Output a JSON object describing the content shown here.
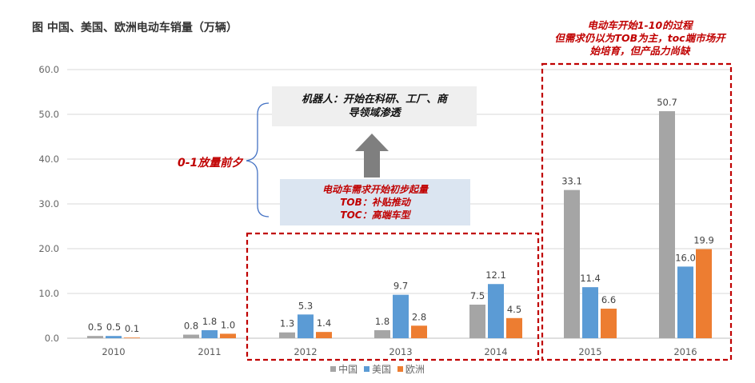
{
  "title": "图 中国、美国、欧洲电动车销量（万辆）",
  "annotations": {
    "top_note": [
      "电动车开始1-10的过程",
      "但需求仍以为TOB为主，toc端市场开",
      "始培育，但产品力尚缺"
    ],
    "robot_box": [
      "机器人：开始在科研、工厂、商",
      "导领域渗透"
    ],
    "demand_box": [
      "电动车需求开始初步起量",
      "TOB：补贴推动",
      "TOC：高端车型"
    ],
    "eve_label": "0-1放量前夕"
  },
  "colors": {
    "china": "#a5a5a5",
    "usa": "#5b9bd5",
    "europe": "#ed7d31",
    "annotation_red": "#c00000",
    "arrow": "#7f7f7f"
  },
  "chart_data": {
    "type": "bar",
    "categories": [
      "2010",
      "2011",
      "2012",
      "2013",
      "2014",
      "2015",
      "2016"
    ],
    "series": [
      {
        "name": "中国",
        "values": [
          0.5,
          0.8,
          1.3,
          1.8,
          7.5,
          33.1,
          50.7
        ]
      },
      {
        "name": "美国",
        "values": [
          0.5,
          1.8,
          5.3,
          9.7,
          12.1,
          11.4,
          16.0
        ]
      },
      {
        "name": "欧洲",
        "values": [
          0.1,
          1.0,
          1.4,
          2.8,
          4.5,
          6.6,
          19.9
        ]
      }
    ],
    "value_labels": [
      [
        "0.5",
        "0.8",
        "1.3",
        "1.8",
        "7.5",
        "33.1",
        "50.7"
      ],
      [
        "0.5",
        "1.8",
        "5.3",
        "9.7",
        "12.1",
        "11.4",
        "16.0"
      ],
      [
        "0.1",
        "1.0",
        "1.4",
        "2.8",
        "4.5",
        "6.6",
        "19.9"
      ]
    ],
    "yticks": [
      "0.0",
      "10.0",
      "20.0",
      "30.0",
      "40.0",
      "50.0",
      "60.0"
    ],
    "ylim": [
      0,
      60
    ],
    "grid": true,
    "legend": "bottom-center",
    "highlight_regions": [
      {
        "from": "2012",
        "to": "2014"
      },
      {
        "from": "2015",
        "to": "2016"
      }
    ]
  }
}
